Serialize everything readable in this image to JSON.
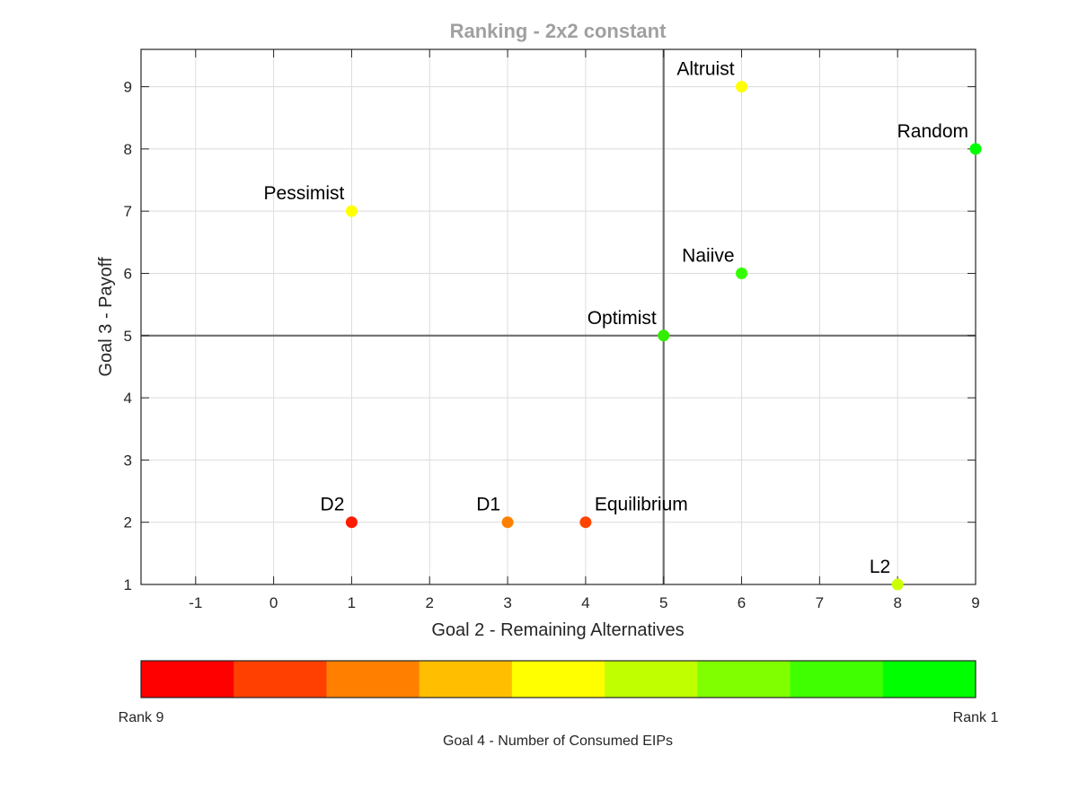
{
  "chart_data": {
    "type": "scatter",
    "title": "Ranking - 2x2 constant",
    "xlabel": "Goal 2 - Remaining Alternatives",
    "ylabel": "Goal 3 - Payoff",
    "xlim": [
      -1.7,
      9
    ],
    "ylim": [
      1,
      9.6
    ],
    "xticks": [
      -1,
      0,
      1,
      2,
      3,
      4,
      5,
      6,
      7,
      8,
      9
    ],
    "yticks": [
      1,
      2,
      3,
      4,
      5,
      6,
      7,
      8,
      9
    ],
    "grid": true,
    "reference_lines": {
      "x": 5,
      "y": 5,
      "color": "#6e6e6e"
    },
    "points": [
      {
        "label": "Altruist",
        "x": 6,
        "y": 9,
        "color": "#ffff00"
      },
      {
        "label": "Random",
        "x": 9,
        "y": 8,
        "color": "#00ff00"
      },
      {
        "label": "Pessimist",
        "x": 1,
        "y": 7,
        "color": "#ffff00"
      },
      {
        "label": "Naiive",
        "x": 6,
        "y": 6,
        "color": "#33ff00"
      },
      {
        "label": "Optimist",
        "x": 5,
        "y": 5,
        "color": "#33ee00"
      },
      {
        "label": "D2",
        "x": 1,
        "y": 2,
        "color": "#ff1a00"
      },
      {
        "label": "D1",
        "x": 3,
        "y": 2,
        "color": "#ff8000"
      },
      {
        "label": "Equilibrium",
        "x": 4,
        "y": 2,
        "color": "#ff4400"
      },
      {
        "label": "L2",
        "x": 8,
        "y": 1,
        "color": "#ccff00"
      }
    ],
    "colorbar": {
      "label": "Goal 4 - Number of Consumed EIPs",
      "left_label": "Rank 9",
      "right_label": "Rank 1",
      "colors": [
        "#ff0000",
        "#ff4000",
        "#ff8000",
        "#ffbf00",
        "#ffff00",
        "#bfff00",
        "#80ff00",
        "#40ff00",
        "#00ff00"
      ]
    }
  }
}
